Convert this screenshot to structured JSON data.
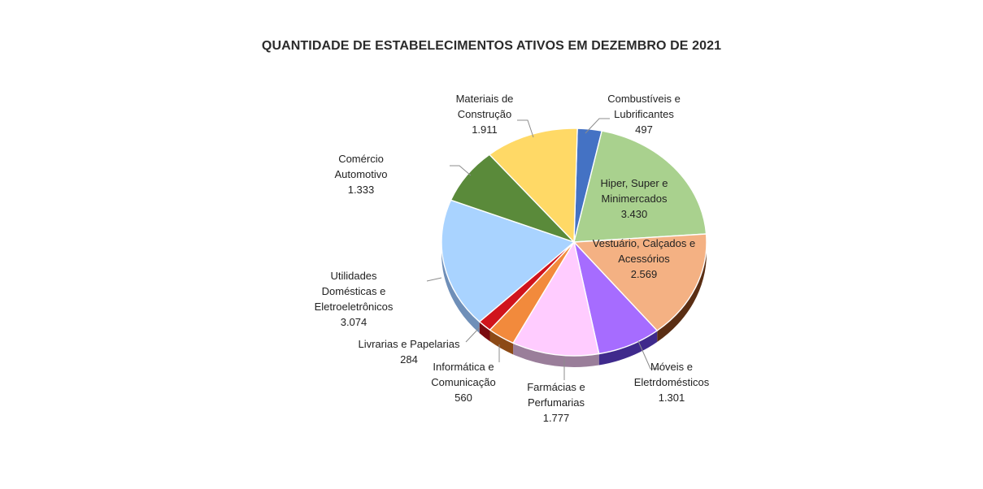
{
  "chart_data": {
    "type": "pie",
    "title": "QUANTIDADE DE ESTABELECIMENTOS ATIVOS EM DEZEMBRO DE 2021",
    "slices": [
      {
        "id": "combustiveis",
        "label_lines": [
          "Combustíveis e",
          "Lubrificantes"
        ],
        "value_label": "497",
        "value": 497,
        "color": "#4472C4",
        "side_color": "#2F4F8A"
      },
      {
        "id": "hiper",
        "label_lines": [
          "Hiper, Super e",
          "Minimercados"
        ],
        "value_label": "3.430",
        "value": 3430,
        "color": "#A9D18E",
        "side_color": "#6E9257"
      },
      {
        "id": "vestuario",
        "label_lines": [
          "Vestuário, Calçados e",
          "Acessórios"
        ],
        "value_label": "2.569",
        "value": 2569,
        "color": "#F4B183",
        "side_color": "#5A2E14"
      },
      {
        "id": "moveis",
        "label_lines": [
          "Móveis e",
          "Eletrdomésticos"
        ],
        "value_label": "1.301",
        "value": 1301,
        "color": "#A66CFF",
        "side_color": "#3F2A8C"
      },
      {
        "id": "farmacias",
        "label_lines": [
          "Farmácias e",
          "Perfumarias"
        ],
        "value_label": "1.777",
        "value": 1777,
        "color": "#FFCCFF",
        "side_color": "#9A7E9A"
      },
      {
        "id": "informatica",
        "label_lines": [
          "Informática e",
          "Comunicação"
        ],
        "value_label": "560",
        "value": 560,
        "color": "#F28A3C",
        "side_color": "#8C4A16"
      },
      {
        "id": "livrarias",
        "label_lines": [
          "Livrarias e Papelarias"
        ],
        "value_label": "284",
        "value": 284,
        "color": "#D0141C",
        "side_color": "#7A0A0F"
      },
      {
        "id": "utilidades",
        "label_lines": [
          "Utilidades",
          "Domésticas e",
          "Eletroeletrônicos"
        ],
        "value_label": "3.074",
        "value": 3074,
        "color": "#A9D3FF",
        "side_color": "#6F8FB8"
      },
      {
        "id": "comercio",
        "label_lines": [
          "Comércio",
          "Automotivo"
        ],
        "value_label": "1.333",
        "value": 1333,
        "color": "#5A8A3A",
        "side_color": "#3A5E25"
      },
      {
        "id": "materiais",
        "label_lines": [
          "Materiais de",
          "Construção"
        ],
        "value_label": "1.911",
        "value": 1911,
        "color": "#FFD966",
        "side_color": "#B89A3A"
      }
    ],
    "legend": "none",
    "data_labels": "outside with leader lines (some inside)"
  }
}
